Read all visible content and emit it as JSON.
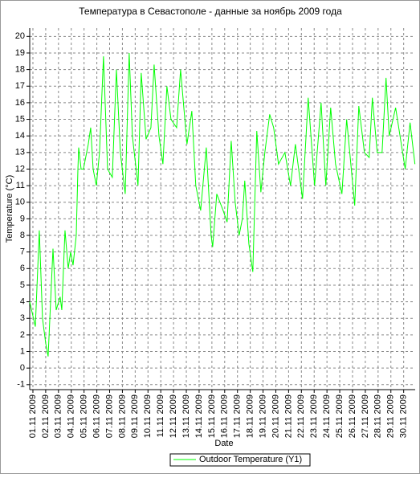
{
  "chart_data": {
    "type": "line",
    "title": "Температура в Севастополе - данные за ноябрь 2009 года",
    "x_label": "Date",
    "y_label": "Temperature (°C)",
    "x": [
      -0.25,
      0.19,
      0.5,
      0.75,
      1.0,
      1.19,
      1.57,
      1.82,
      2.13,
      2.26,
      2.51,
      2.76,
      2.95,
      3.14,
      3.39,
      3.52,
      3.58,
      3.77,
      3.95,
      4.33,
      4.52,
      4.71,
      4.96,
      5.21,
      5.52,
      5.84,
      6.21,
      6.53,
      6.84,
      7.22,
      7.53,
      7.78,
      8.22,
      8.47,
      8.85,
      9.23,
      9.48,
      9.86,
      10.17,
      10.48,
      10.8,
      11.24,
      11.55,
      12.05,
      12.43,
      12.74,
      13.12,
      13.56,
      13.94,
      14.06,
      14.38,
      14.88,
      15.19,
      15.51,
      15.82,
      16.13,
      16.38,
      16.57,
      16.89,
      17.2,
      17.51,
      17.83,
      18.14,
      18.52,
      18.83,
      19.21,
      19.71,
      20.15,
      20.53,
      21.09,
      21.53,
      22.03,
      22.54,
      22.91,
      23.29,
      23.67,
      24.17,
      24.54,
      25.17,
      25.49,
      25.93,
      26.3,
      26.55,
      26.93,
      27.31,
      27.62,
      27.87,
      28.37,
      29.12,
      29.5,
      29.88
    ],
    "series": [
      {
        "name": "Outdoor Temperature (Y1)",
        "color": "#00ff00",
        "values": [
          4,
          2.5,
          8.3,
          3,
          1.5,
          0.7,
          7.2,
          3.5,
          4.3,
          3.5,
          8.3,
          6,
          7,
          6.2,
          8,
          12,
          13.3,
          12,
          12,
          13.5,
          14.5,
          12,
          11,
          13,
          18.8,
          12,
          11.5,
          18,
          13,
          10.5,
          19,
          14,
          11,
          17.8,
          13.8,
          14.5,
          18.3,
          14,
          12.3,
          17,
          15,
          14.5,
          18,
          13.5,
          15.5,
          11,
          9.5,
          13.3,
          8,
          7.3,
          10.5,
          9.5,
          8.8,
          13.7,
          10,
          8,
          9,
          11.3,
          7.5,
          5.8,
          14.3,
          10.6,
          13,
          15.3,
          14.5,
          12.3,
          13,
          11,
          13.5,
          10.2,
          16.3,
          11,
          16,
          11,
          15.7,
          12.3,
          10.5,
          15,
          9.8,
          15.8,
          13,
          12.7,
          16.3,
          13,
          13,
          17.5,
          14,
          15.7,
          12,
          14.8,
          12.3
        ]
      }
    ],
    "xlim": [
      -0.25,
      29.9
    ],
    "xticks": [
      {
        "value": 0,
        "label": "01.11 2009"
      },
      {
        "value": 1,
        "label": "02.11 2009"
      },
      {
        "value": 2,
        "label": "03.11 2009"
      },
      {
        "value": 3,
        "label": "04.11 2009"
      },
      {
        "value": 4,
        "label": "05.11 2009"
      },
      {
        "value": 5,
        "label": "06.11 2009"
      },
      {
        "value": 6,
        "label": "07.11 2009"
      },
      {
        "value": 7,
        "label": "08.11 2009"
      },
      {
        "value": 8,
        "label": "09.11 2009"
      },
      {
        "value": 9,
        "label": "10.11 2009"
      },
      {
        "value": 10,
        "label": "11.11 2009"
      },
      {
        "value": 11,
        "label": "12.11 2009"
      },
      {
        "value": 12,
        "label": "13.11 2009"
      },
      {
        "value": 13,
        "label": "14.11 2009"
      },
      {
        "value": 14,
        "label": "15.11 2009"
      },
      {
        "value": 15,
        "label": "16.11 2009"
      },
      {
        "value": 16,
        "label": "17.11 2009"
      },
      {
        "value": 17,
        "label": "18.11 2009"
      },
      {
        "value": 18,
        "label": "19.11 2009"
      },
      {
        "value": 19,
        "label": "20.11 2009"
      },
      {
        "value": 20,
        "label": "21.11 2009"
      },
      {
        "value": 21,
        "label": "22.11 2009"
      },
      {
        "value": 22,
        "label": "23.11 2009"
      },
      {
        "value": 23,
        "label": "24.11 2009"
      },
      {
        "value": 24,
        "label": "25.11 2009"
      },
      {
        "value": 25,
        "label": "26.11 2009"
      },
      {
        "value": 26,
        "label": "27.11 2009"
      },
      {
        "value": 27,
        "label": "28.11 2009"
      },
      {
        "value": 28,
        "label": "29.11 2009"
      },
      {
        "value": 29,
        "label": "30.11 2009"
      }
    ],
    "ylim": [
      -1.3,
      20.5
    ],
    "yticks": [
      -1,
      0,
      1,
      2,
      3,
      4,
      5,
      6,
      7,
      8,
      9,
      10,
      11,
      12,
      13,
      14,
      15,
      16,
      17,
      18,
      19,
      20
    ],
    "grid": true
  }
}
